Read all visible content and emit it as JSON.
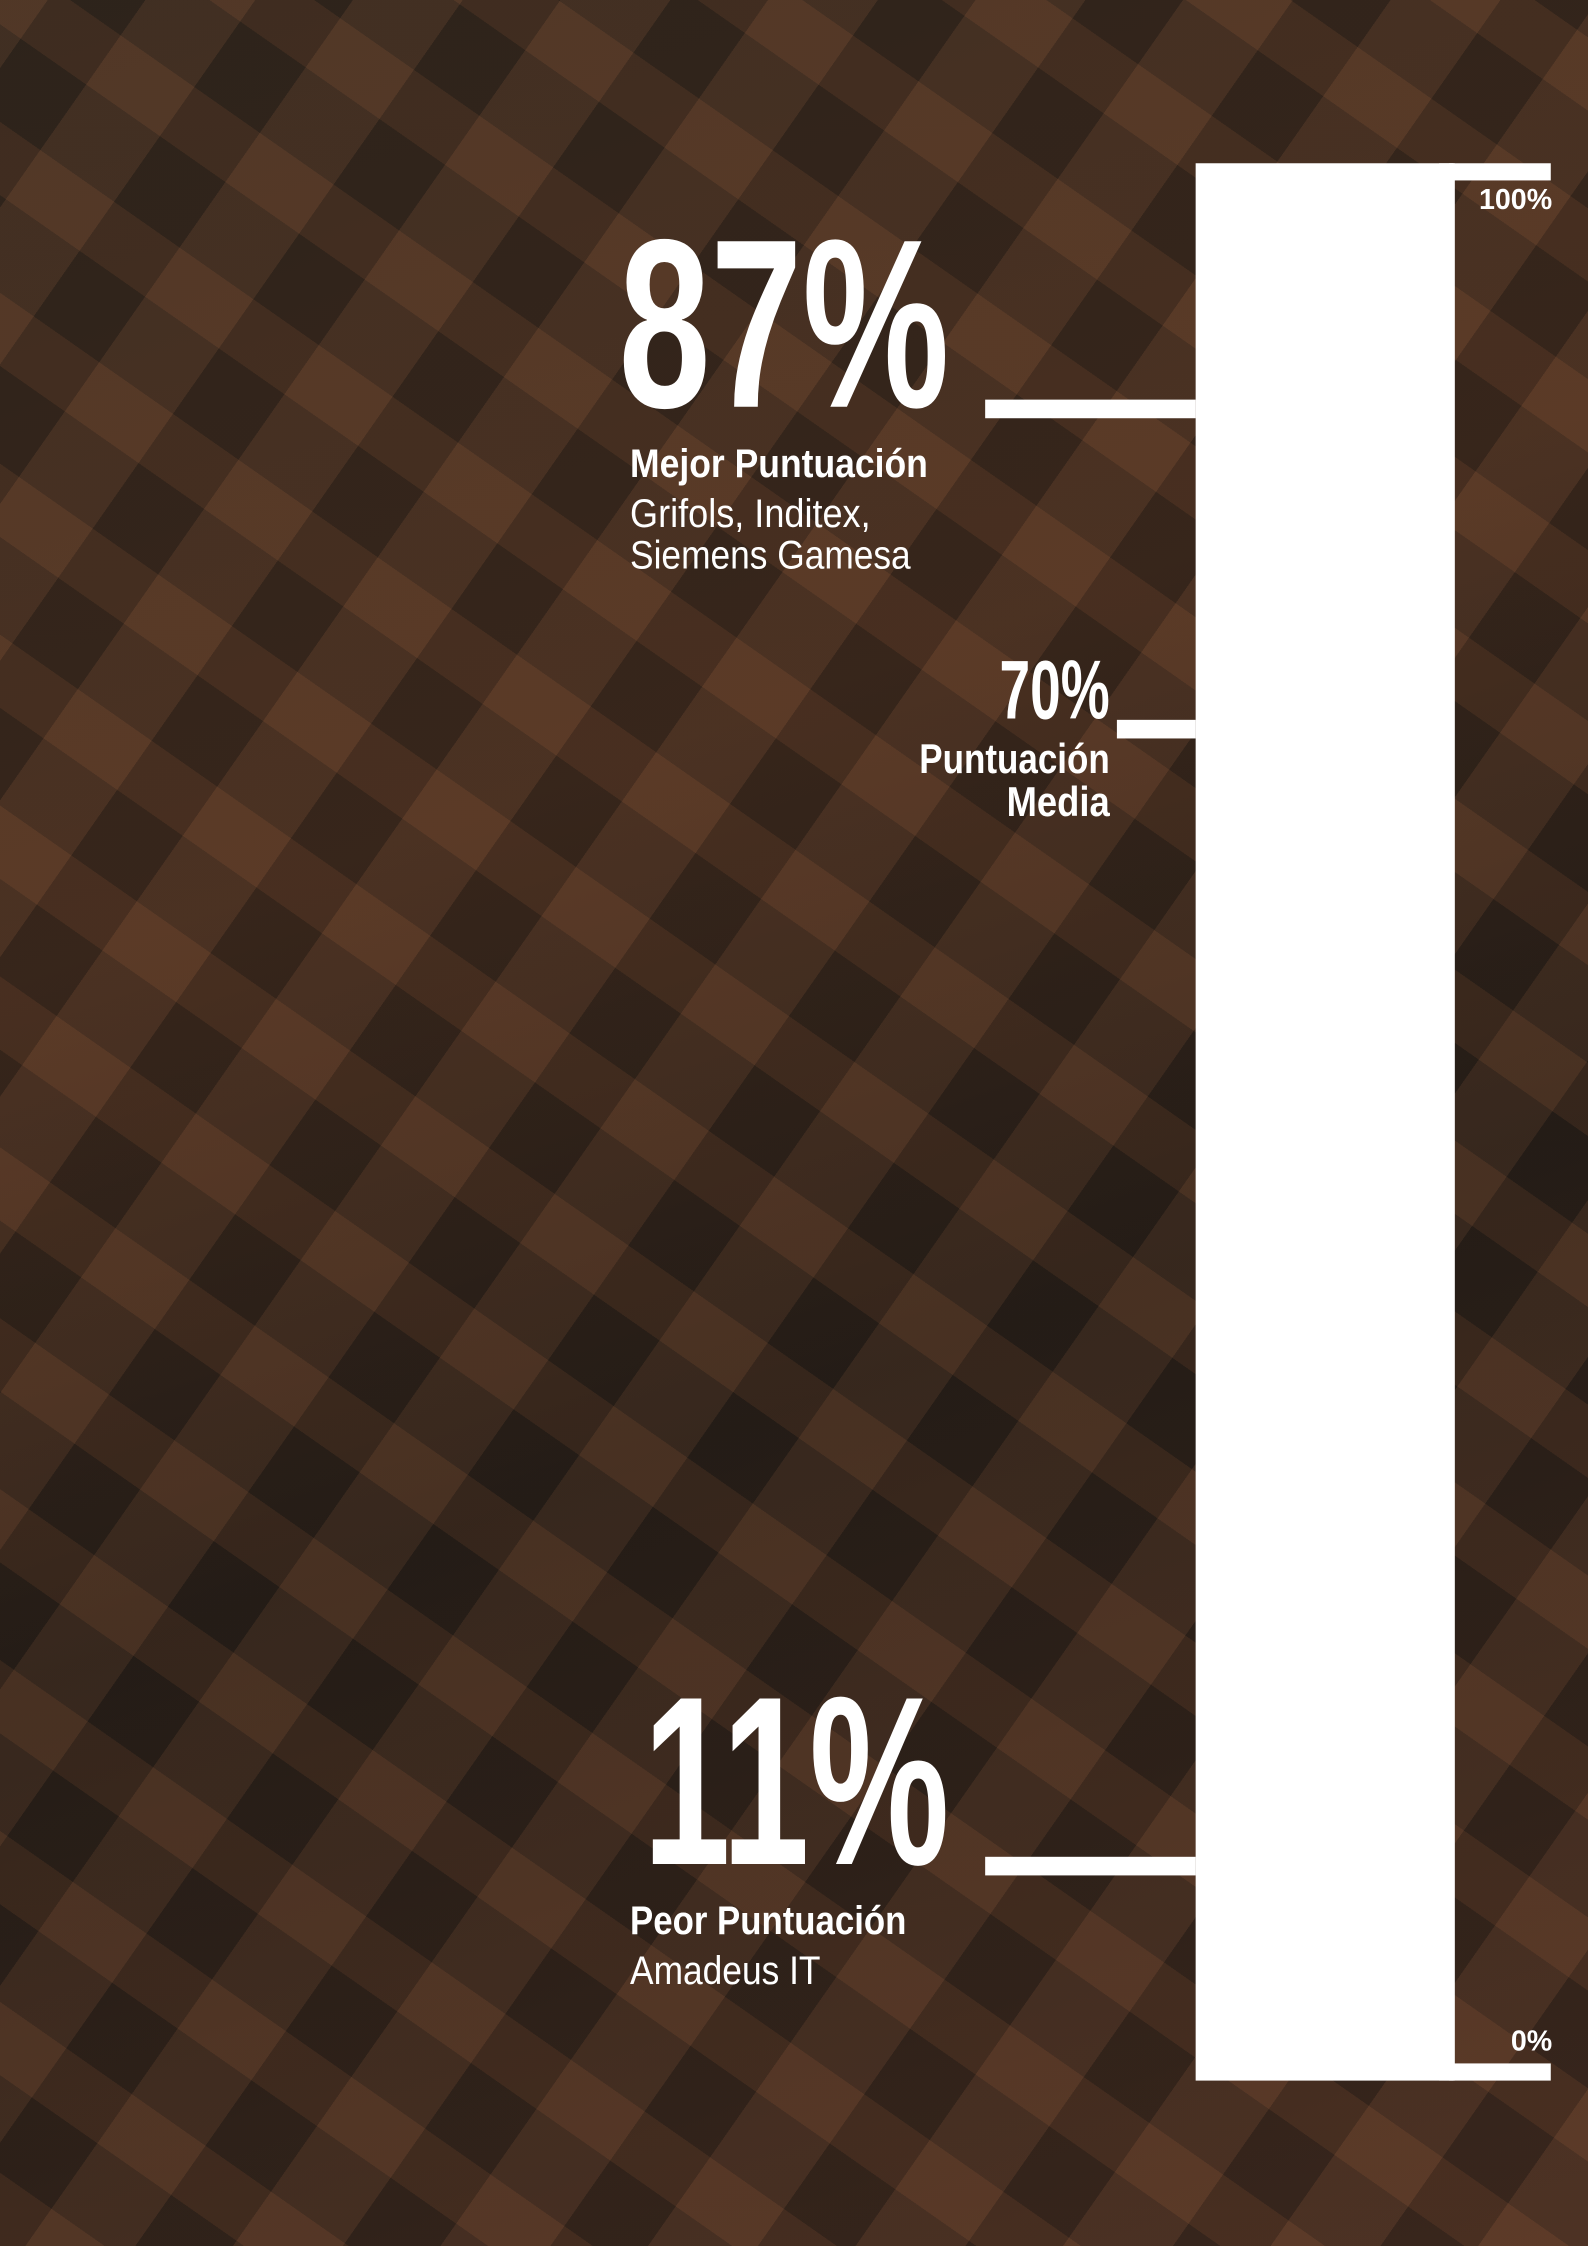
{
  "chart_data": {
    "type": "scale",
    "ylim": [
      0,
      100
    ],
    "yticks": [
      {
        "value": 100,
        "label": "100%"
      },
      {
        "value": 0,
        "label": "0%"
      }
    ],
    "color": "#ffffff",
    "markers": [
      {
        "value": 87,
        "value_label": "87%",
        "title": "Mejor Puntuación",
        "detail": [
          "Grifols, Inditex,",
          "Siemens Gamesa"
        ]
      },
      {
        "value": 70,
        "value_label": "70%",
        "title": [
          "Puntuación",
          "Media"
        ]
      },
      {
        "value": 11,
        "value_label": "11%",
        "title": "Peor Puntuación",
        "detail": [
          "Amadeus IT"
        ]
      }
    ]
  }
}
